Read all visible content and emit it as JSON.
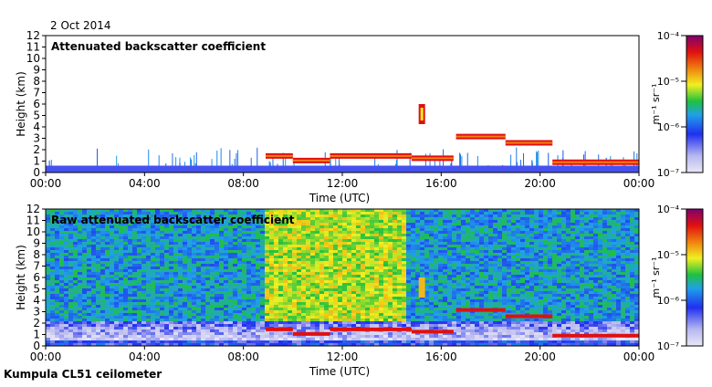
{
  "date_label": "2 Oct 2014",
  "footer_label": "Kumpula CL51 ceilometer",
  "chart_data": [
    {
      "type": "heatmap",
      "title": "Attenuated backscatter coefficient",
      "xlabel": "Time (UTC)",
      "ylabel": "Height (km)",
      "x_ticks": [
        "00:00",
        "04:00",
        "08:00",
        "12:00",
        "16:00",
        "20:00",
        "00:00"
      ],
      "x_tick_hours": [
        0,
        4,
        8,
        12,
        16,
        20,
        24
      ],
      "y_ticks": [
        0,
        1,
        2,
        3,
        4,
        5,
        6,
        7,
        8,
        9,
        10,
        11,
        12
      ],
      "xlim_hours": [
        0,
        24
      ],
      "ylim_km": [
        0,
        12
      ],
      "colorbar": {
        "label": "m⁻¹ sr⁻¹",
        "scale": "log",
        "ticks": [
          {
            "label": "10⁻⁷",
            "exp": -7
          },
          {
            "label": "10⁻⁶",
            "exp": -6
          },
          {
            "label": "10⁻⁵",
            "exp": -5
          },
          {
            "label": "10⁻⁴",
            "exp": -4
          }
        ]
      },
      "features": {
        "surface_layer": {
          "top_km": 0.6,
          "value_exp": -6.3
        },
        "cloud_base_segments": [
          {
            "start_h": 8.9,
            "end_h": 10.0,
            "height_km": 1.45
          },
          {
            "start_h": 10.0,
            "end_h": 11.5,
            "height_km": 1.05
          },
          {
            "start_h": 11.5,
            "end_h": 14.8,
            "height_km": 1.45
          },
          {
            "start_h": 14.8,
            "end_h": 16.5,
            "height_km": 1.25
          },
          {
            "start_h": 16.6,
            "end_h": 18.6,
            "height_km": 3.15
          },
          {
            "start_h": 18.6,
            "end_h": 20.5,
            "height_km": 2.6
          },
          {
            "start_h": 20.5,
            "end_h": 24.0,
            "height_km": 0.9
          }
        ],
        "elevated_cloud": {
          "center_h": 15.2,
          "height_km": 5.2
        }
      }
    },
    {
      "type": "heatmap",
      "title": "Raw attenuated backscatter coefficient",
      "xlabel": "Time (UTC)",
      "ylabel": "Height (km)",
      "x_ticks": [
        "00:00",
        "04:00",
        "08:00",
        "12:00",
        "16:00",
        "20:00",
        "00:00"
      ],
      "x_tick_hours": [
        0,
        4,
        8,
        12,
        16,
        20,
        24
      ],
      "y_ticks": [
        0,
        1,
        2,
        3,
        4,
        5,
        6,
        7,
        8,
        9,
        10,
        11,
        12
      ],
      "xlim_hours": [
        0,
        24
      ],
      "ylim_km": [
        0,
        12
      ],
      "colorbar": {
        "label": "m⁻¹ sr⁻¹",
        "scale": "log",
        "ticks": [
          {
            "label": "10⁻⁷",
            "exp": -7
          },
          {
            "label": "10⁻⁶",
            "exp": -6
          },
          {
            "label": "10⁻⁵",
            "exp": -5
          },
          {
            "label": "10⁻⁴",
            "exp": -4
          }
        ]
      },
      "features": {
        "noise_background_exp": -5.8,
        "daytime_noise": {
          "start_h": 8.8,
          "end_h": 14.5,
          "value_exp": -5.2
        }
      }
    }
  ]
}
